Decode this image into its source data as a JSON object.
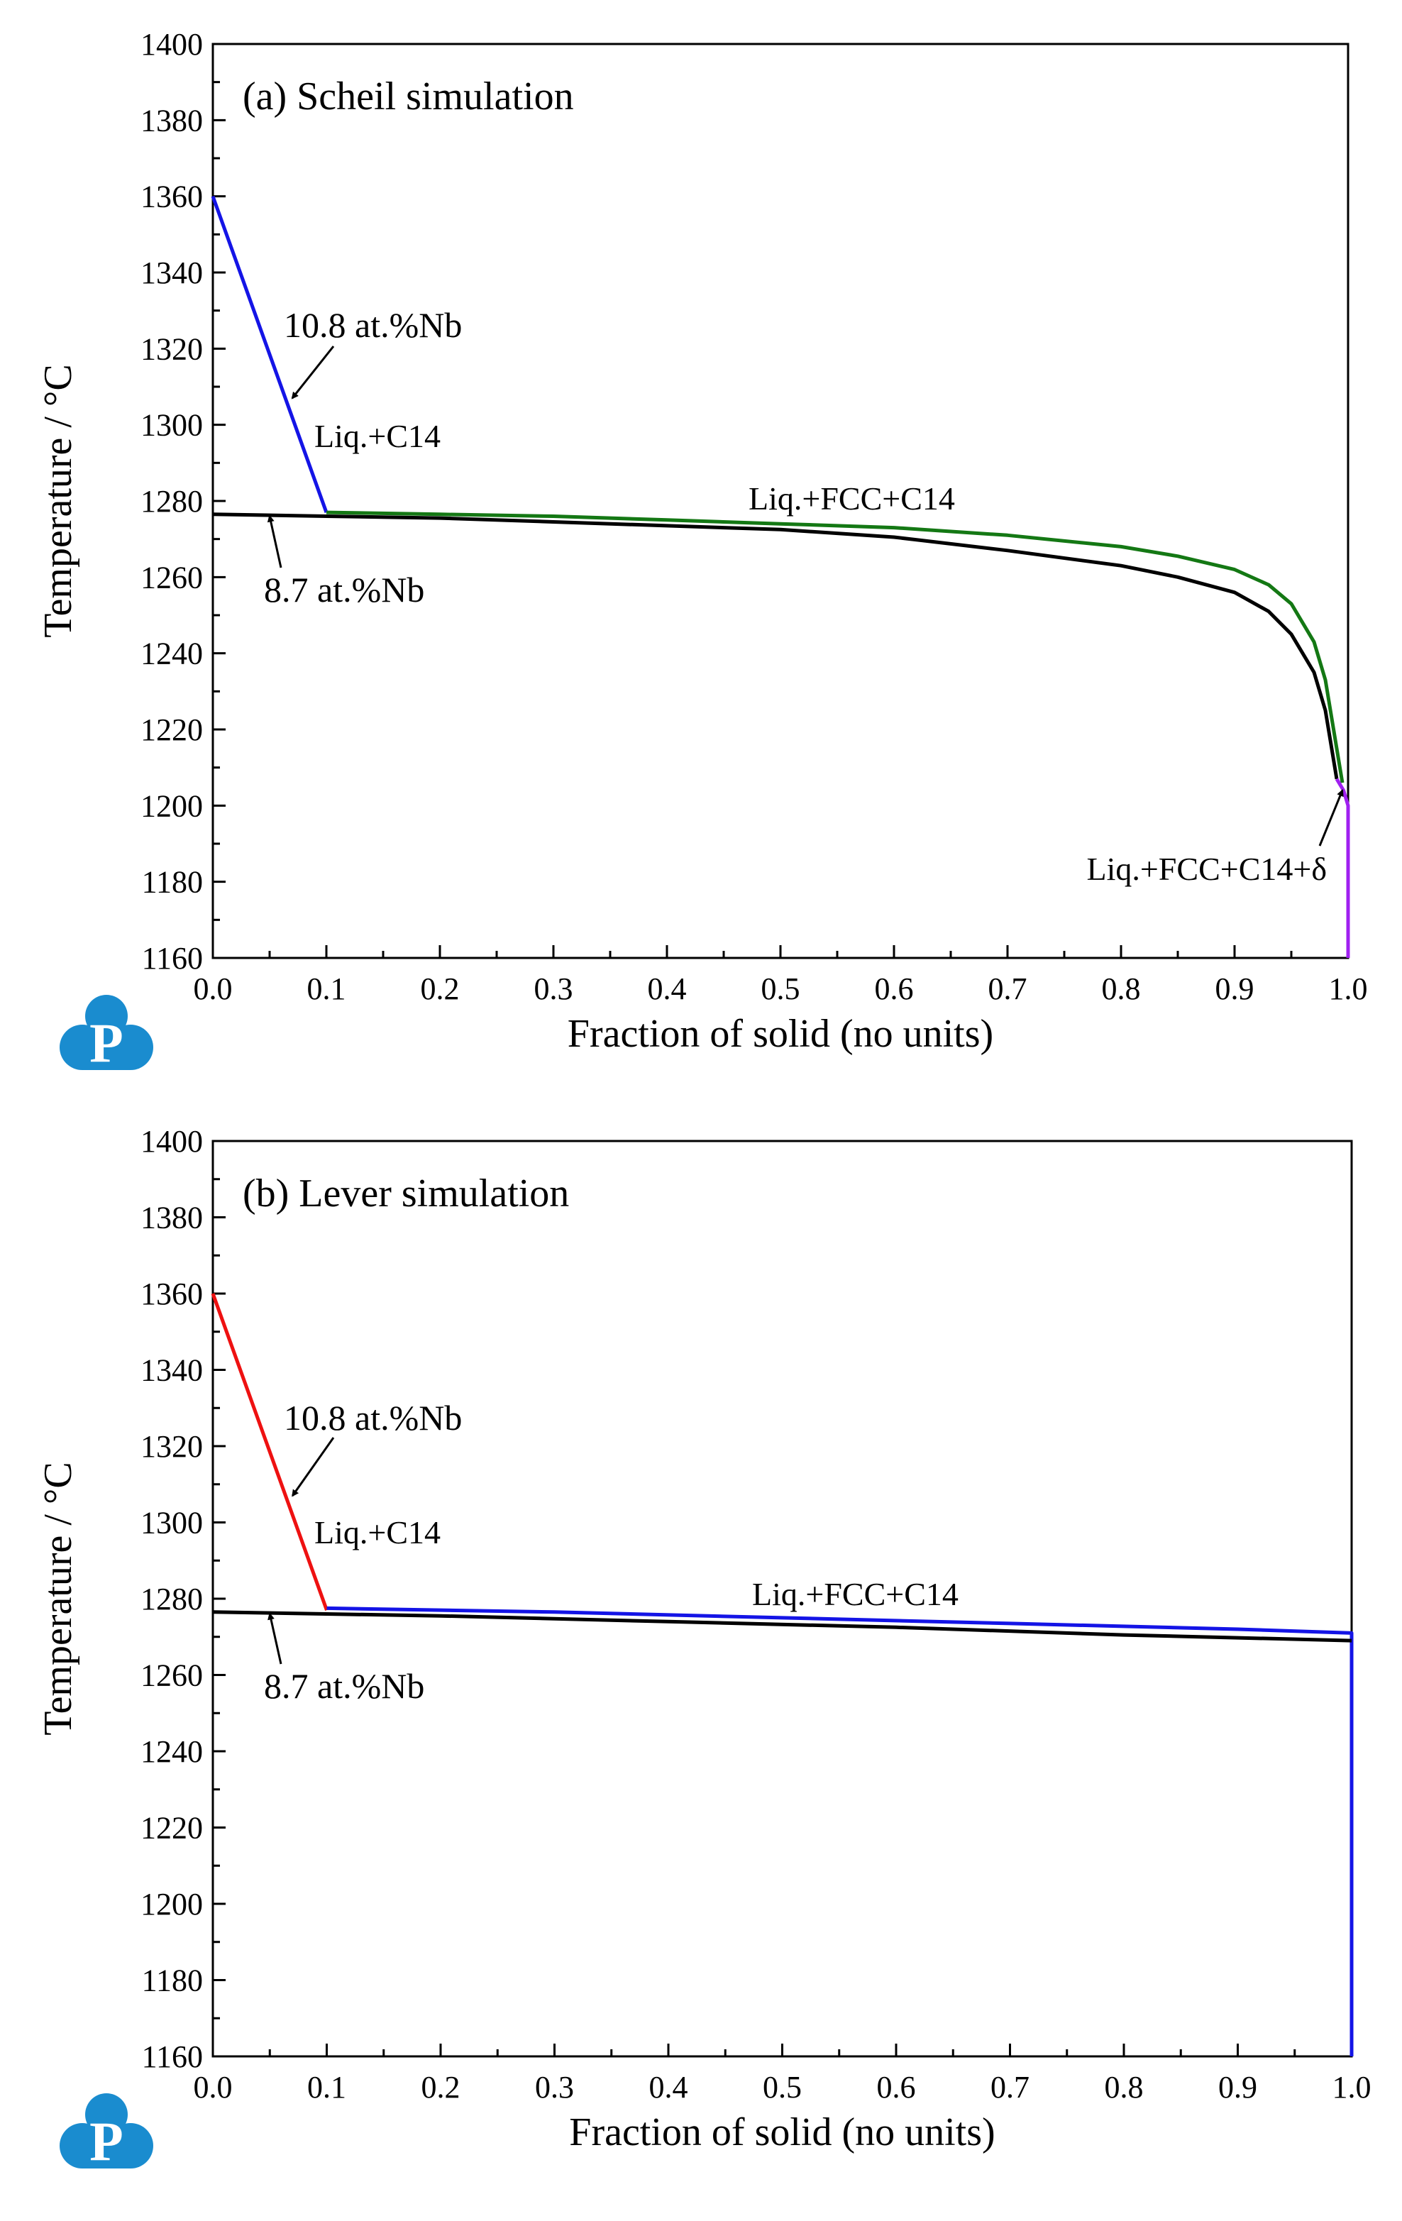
{
  "colors": {
    "blue": "#1414e6",
    "green": "#147814",
    "black": "#000000",
    "purple": "#a020f0",
    "red": "#ee1111",
    "logo": "#1a8ccf"
  },
  "logo": {
    "letter": "P",
    "icon": "publisher-logo-icon"
  },
  "chart_data": [
    {
      "type": "line",
      "title": "(a) Scheil simulation",
      "xlabel": "Fraction of solid (no units)",
      "ylabel": "Temperature / °C",
      "xlim": [
        0.0,
        1.0
      ],
      "ylim": [
        1160,
        1400
      ],
      "xticks": [
        "0.0",
        "0.1",
        "0.2",
        "0.3",
        "0.4",
        "0.5",
        "0.6",
        "0.7",
        "0.8",
        "0.9",
        "1.0"
      ],
      "yticks": [
        "1160",
        "1180",
        "1200",
        "1220",
        "1240",
        "1260",
        "1280",
        "1300",
        "1320",
        "1340",
        "1360",
        "1380",
        "1400"
      ],
      "grid": false,
      "series": [
        {
          "name": "",
          "color": "#1414e6",
          "x": [
            0.0,
            0.1
          ],
          "y": [
            1360,
            1277
          ]
        },
        {
          "name": "",
          "color": "#147814",
          "x": [
            0.1,
            0.2,
            0.3,
            0.4,
            0.5,
            0.6,
            0.7,
            0.8,
            0.85,
            0.9,
            0.93,
            0.95,
            0.97,
            0.98,
            0.99,
            0.995
          ],
          "y": [
            1277,
            1276.5,
            1276,
            1275,
            1274,
            1273,
            1271,
            1268,
            1265.5,
            1262,
            1258,
            1253,
            1243,
            1233,
            1215,
            1206
          ]
        },
        {
          "name": "",
          "color": "#000000",
          "x": [
            0.0,
            0.1,
            0.2,
            0.3,
            0.4,
            0.5,
            0.6,
            0.7,
            0.8,
            0.85,
            0.9,
            0.93,
            0.95,
            0.97,
            0.98,
            0.99
          ],
          "y": [
            1276.5,
            1276,
            1275.5,
            1274.5,
            1273.5,
            1272.5,
            1270.5,
            1267,
            1263,
            1260,
            1256,
            1251,
            1245,
            1235,
            1225,
            1207
          ]
        },
        {
          "name": "",
          "color": "#a020f0",
          "x": [
            0.99,
            0.996,
            1.0,
            1.0
          ],
          "y": [
            1207,
            1204,
            1200,
            1160
          ]
        }
      ],
      "annotations": [
        {
          "text": "10.8 at.%Nb",
          "arrow_to": [
            0.07,
            1307
          ]
        },
        {
          "text": "Liq.+C14"
        },
        {
          "text": "Liq.+FCC+C14"
        },
        {
          "text": "8.7 at.%Nb",
          "arrow_to": [
            0.05,
            1276
          ]
        },
        {
          "text": "Liq.+FCC+C14+δ",
          "arrow_to": [
            0.995,
            1204
          ]
        }
      ]
    },
    {
      "type": "line",
      "title": "(b) Lever simulation",
      "xlabel": "Fraction of solid (no units)",
      "ylabel": "Temperature / °C",
      "xlim": [
        0.0,
        1.0
      ],
      "ylim": [
        1160,
        1400
      ],
      "xticks": [
        "0.0",
        "0.1",
        "0.2",
        "0.3",
        "0.4",
        "0.5",
        "0.6",
        "0.7",
        "0.8",
        "0.9",
        "1.0"
      ],
      "yticks": [
        "1160",
        "1180",
        "1200",
        "1220",
        "1240",
        "1260",
        "1280",
        "1300",
        "1320",
        "1340",
        "1360",
        "1380",
        "1400"
      ],
      "grid": false,
      "series": [
        {
          "name": "",
          "color": "#ee1111",
          "x": [
            0.0,
            0.1
          ],
          "y": [
            1360,
            1277
          ]
        },
        {
          "name": "",
          "color": "#1414e6",
          "x": [
            0.1,
            0.3,
            0.5,
            0.7,
            0.9,
            1.0,
            1.0
          ],
          "y": [
            1277.5,
            1276.5,
            1275,
            1273.5,
            1272,
            1271,
            1160
          ]
        },
        {
          "name": "",
          "color": "#000000",
          "x": [
            0.0,
            0.2,
            0.4,
            0.6,
            0.8,
            1.0
          ],
          "y": [
            1276.5,
            1275.5,
            1274,
            1272.5,
            1270.5,
            1269
          ]
        }
      ],
      "annotations": [
        {
          "text": "10.8 at.%Nb",
          "arrow_to": [
            0.07,
            1307
          ]
        },
        {
          "text": "Liq.+C14"
        },
        {
          "text": "Liq.+FCC+C14"
        },
        {
          "text": "8.7 at.%Nb",
          "arrow_to": [
            0.05,
            1276
          ]
        }
      ]
    }
  ]
}
